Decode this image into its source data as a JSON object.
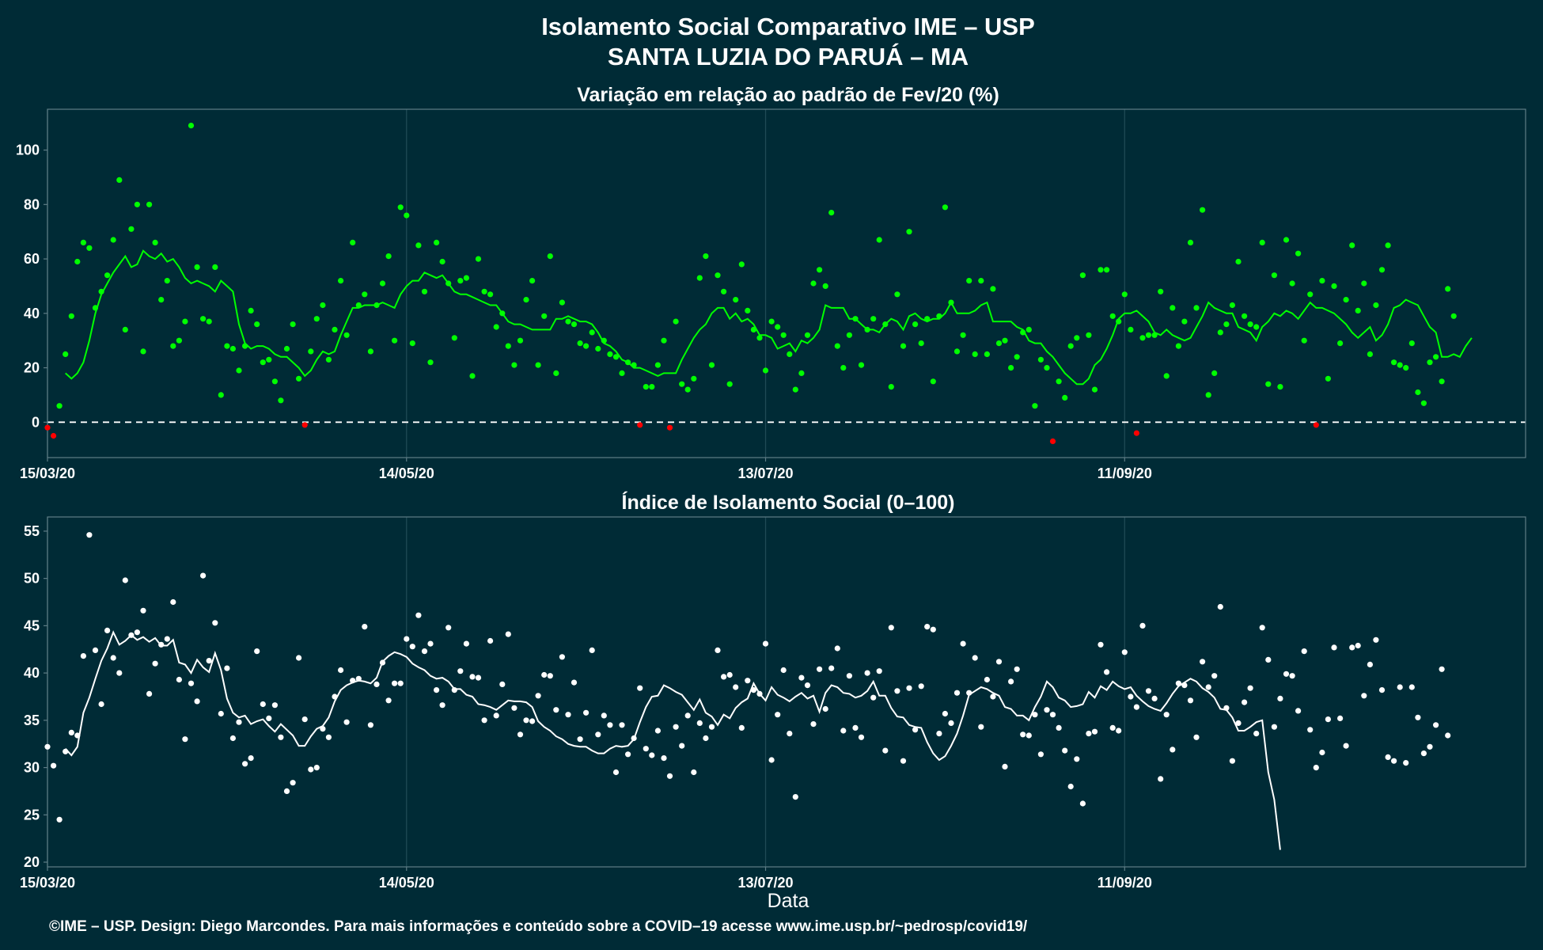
{
  "header": {
    "title_line1": "Isolamento Social Comparativo IME – USP",
    "title_line2": "SANTA LUZIA DO PARUÁ – MA"
  },
  "footer": {
    "xlabel": "Data",
    "caption": "©IME – USP. Design: Diego Marcondes. Para mais informações e conteúdo sobre a COVID–19 acesse www.ime.usp.br/~pedrosp/covid19/"
  },
  "colors": {
    "background": "#002b36",
    "positive_points": "#00ff00",
    "negative_points": "#ff0000",
    "moving_average_top": "#00ff00",
    "index_points": "#ffffff",
    "index_line": "#ffffff"
  },
  "chart_data": [
    {
      "type": "scatter",
      "title": "Variação em relação ao padrão de Fev/20 (%)",
      "x_start": "15/03/20",
      "x_end": "17/11/20",
      "x_tick_labels": [
        "15/03/20",
        "14/05/20",
        "13/07/20",
        "11/09/20"
      ],
      "y_ticks": [
        0,
        20,
        40,
        60,
        80,
        100
      ],
      "ylim": [
        -13,
        115
      ],
      "reference_line": 0,
      "grid": "vertical only",
      "point_color_rule": "green when >= 0, red when < 0",
      "series": [
        {
          "type": "scatter",
          "values": [
            -2,
            -5,
            6,
            25,
            39,
            59,
            66,
            64,
            42,
            48,
            54,
            67,
            89,
            34,
            71,
            80,
            26,
            80,
            66,
            45,
            52,
            28,
            30,
            37,
            109,
            57,
            38,
            37,
            57,
            10,
            28,
            27,
            19,
            28,
            41,
            36,
            22,
            23,
            15,
            8,
            27,
            36,
            16,
            -1,
            26,
            38,
            43,
            23,
            34,
            52,
            32,
            66,
            43,
            47,
            26,
            43,
            51,
            61,
            30,
            79,
            76,
            29,
            65,
            48,
            22,
            66,
            59,
            51,
            31,
            52,
            53,
            17,
            60,
            48,
            47,
            35,
            40,
            28,
            21,
            30,
            45,
            52,
            21,
            39,
            61,
            18,
            44,
            37,
            36,
            29,
            28,
            33,
            27,
            30,
            25,
            24,
            18,
            22,
            21,
            -1,
            13,
            13,
            21,
            30,
            -2,
            37,
            14,
            12,
            16,
            53,
            61,
            21,
            54,
            48,
            14,
            45,
            58,
            41,
            34,
            31,
            19,
            37,
            35,
            32,
            25,
            12,
            18,
            32,
            51,
            56,
            50,
            77,
            28,
            20,
            32,
            38,
            21,
            34,
            38,
            67,
            36,
            13,
            47,
            28,
            70,
            36,
            29,
            38,
            15,
            39,
            79,
            44,
            26,
            32,
            52,
            25,
            52,
            25,
            49,
            29,
            30,
            20,
            24,
            33,
            34,
            6,
            23,
            20,
            -7,
            15,
            9,
            28,
            31,
            54,
            32,
            12,
            56,
            56,
            39,
            37,
            47,
            34,
            -4,
            31,
            32,
            32,
            48,
            17,
            42,
            28,
            37,
            66,
            42,
            78,
            10,
            18,
            33,
            36,
            43,
            59,
            39,
            36,
            35,
            66,
            14,
            54,
            13,
            67,
            51,
            62,
            30,
            47,
            -1,
            52,
            16,
            50,
            29,
            45,
            65,
            41,
            51,
            25,
            43,
            56,
            65,
            22,
            21,
            20,
            29,
            11,
            7,
            22,
            24,
            15,
            49,
            39
          ],
          "negative_color": "#ff0000",
          "positive_color": "#00ff00"
        },
        {
          "type": "line",
          "values": [
            18,
            16,
            18,
            22,
            30,
            40,
            47,
            51,
            55,
            58,
            61,
            57,
            58,
            63,
            61,
            60,
            62,
            59,
            60,
            57,
            53,
            51,
            52,
            51,
            50,
            48,
            52,
            50,
            48,
            36,
            29,
            27,
            28,
            28,
            27,
            25,
            24,
            24,
            22,
            20,
            17,
            19,
            23,
            26,
            25,
            26,
            32,
            37,
            42,
            42,
            43,
            43,
            43,
            44,
            43,
            42,
            47,
            50,
            52,
            52,
            55,
            54,
            53,
            54,
            51,
            48,
            47,
            47,
            46,
            45,
            44,
            43,
            43,
            40,
            37,
            36,
            36,
            35,
            34,
            34,
            34,
            34,
            38,
            38,
            39,
            38,
            37,
            37,
            36,
            33,
            29,
            28,
            26,
            23,
            22,
            20,
            20,
            19,
            18,
            17,
            18,
            18,
            18,
            23,
            27,
            31,
            34,
            36,
            40,
            42,
            42,
            38,
            40,
            37,
            38,
            36,
            32,
            32,
            31,
            27,
            28,
            29,
            26,
            30,
            29,
            31,
            34,
            43,
            42,
            42,
            42,
            38,
            38,
            36,
            34,
            34,
            33,
            36,
            38,
            37,
            34,
            39,
            40,
            38,
            37,
            38,
            38,
            40,
            44,
            40,
            40,
            40,
            41,
            43,
            44,
            37,
            37,
            37,
            37,
            35,
            34,
            30,
            29,
            29,
            26,
            24,
            21,
            18,
            16,
            14,
            14,
            16,
            21,
            23,
            27,
            32,
            38,
            40,
            40,
            41,
            39,
            37,
            33,
            32,
            34,
            32,
            31,
            30,
            31,
            35,
            39,
            44,
            42,
            41,
            40,
            40,
            35,
            34,
            33,
            30,
            35,
            37,
            40,
            39,
            41,
            40,
            38,
            41,
            44,
            42,
            42,
            41,
            40,
            38,
            36,
            33,
            31,
            33,
            35,
            30,
            32,
            36,
            42,
            43,
            45,
            44,
            43,
            39,
            35,
            33,
            24,
            24,
            25,
            24,
            28,
            31
          ]
        }
      ]
    },
    {
      "type": "scatter",
      "title": "Índice de Isolamento Social (0–100)",
      "x_start": "15/03/20",
      "x_end": "17/11/20",
      "x_tick_labels": [
        "15/03/20",
        "14/05/20",
        "13/07/20",
        "11/09/20"
      ],
      "y_ticks": [
        20,
        25,
        30,
        35,
        40,
        45,
        50,
        55
      ],
      "ylim": [
        19.5,
        56.5
      ],
      "grid": "vertical only",
      "xlabel": "Data",
      "series": [
        {
          "type": "scatter",
          "values": [
            32.2,
            30.2,
            24.5,
            31.7,
            33.7,
            33.4,
            41.8,
            54.6,
            42.4,
            36.7,
            44.5,
            41.6,
            40.0,
            49.8,
            44.0,
            44.3,
            46.6,
            37.8,
            41.0,
            43.0,
            43.6,
            47.5,
            39.3,
            33.0,
            38.9,
            37.0,
            50.3,
            41.3,
            45.3,
            35.7,
            40.5,
            33.1,
            34.8,
            30.4,
            31.0,
            42.3,
            36.7,
            35.2,
            36.6,
            33.2,
            27.5,
            28.4,
            41.6,
            35.1,
            29.8,
            30.0,
            34.1,
            33.2,
            37.5,
            40.3,
            34.8,
            39.2,
            39.4,
            44.9,
            34.5,
            38.8,
            41.1,
            37.1,
            38.9,
            38.9,
            43.6,
            42.8,
            46.1,
            42.3,
            43.1,
            38.2,
            36.6,
            44.8,
            38.2,
            40.2,
            43.1,
            39.6,
            39.5,
            35.0,
            43.4,
            35.5,
            38.8,
            44.1,
            36.3,
            33.5,
            35.0,
            34.9,
            37.6,
            39.8,
            39.7,
            36.1,
            41.7,
            35.6,
            39.0,
            33.0,
            35.8,
            42.4,
            33.5,
            35.5,
            34.5,
            29.5,
            34.5,
            31.4,
            33.1,
            38.4,
            32.0,
            31.3,
            33.9,
            31.0,
            29.1,
            34.3,
            32.3,
            35.5,
            29.5,
            34.7,
            33.1,
            34.3,
            42.4,
            39.6,
            39.8,
            38.5,
            34.2,
            39.2,
            38.2,
            37.8,
            43.1,
            30.8,
            35.6,
            40.3,
            33.6,
            26.9,
            39.5,
            38.7,
            34.6,
            40.4,
            36.2,
            40.5,
            42.6,
            33.9,
            39.7,
            34.2,
            33.2,
            40.0,
            37.4,
            40.2,
            31.8,
            44.8,
            38.1,
            30.7,
            38.4,
            34.0,
            38.6,
            44.9,
            44.6,
            33.6,
            35.7,
            34.7,
            37.9,
            43.1,
            37.9,
            41.6,
            34.3,
            39.3,
            37.5,
            41.2,
            30.1,
            39.1,
            40.4,
            33.5,
            33.4,
            35.6,
            31.4,
            36.1,
            35.6,
            34.2,
            31.8,
            28.0,
            30.9,
            26.2,
            33.6,
            33.8,
            43.0,
            40.1,
            34.2,
            33.9,
            42.2,
            37.5,
            36.4,
            45.0,
            38.1,
            37.3,
            28.8,
            35.6,
            31.9,
            38.9,
            38.7,
            37.1,
            33.2,
            41.2,
            38.5,
            39.7,
            47.0,
            36.3,
            30.7,
            34.7,
            36.9,
            38.4,
            33.6,
            44.8,
            41.4,
            34.3,
            37.3,
            39.9,
            39.7,
            36.0,
            42.3,
            34.0,
            30.0,
            31.6,
            35.1,
            42.7,
            35.2,
            32.3,
            42.7,
            42.9,
            37.6,
            40.9,
            43.5,
            38.2,
            31.1,
            30.7,
            38.5,
            30.5,
            38.5,
            35.3,
            31.5,
            32.2,
            34.5,
            40.4,
            33.4
          ]
        },
        {
          "type": "line",
          "values": [
            32.0,
            31.3,
            32.2,
            35.8,
            37.4,
            39.4,
            41.3,
            42.6,
            44.3,
            43.0,
            43.4,
            44.0,
            43.5,
            43.8,
            43.3,
            43.7,
            42.9,
            42.9,
            43.5,
            41.1,
            40.9,
            40.0,
            41.4,
            40.6,
            40.1,
            42.1,
            40.3,
            37.3,
            35.8,
            35.3,
            35.5,
            34.6,
            34.9,
            35.1,
            34.4,
            33.8,
            34.6,
            34.0,
            33.4,
            32.3,
            32.3,
            33.3,
            34.1,
            34.4,
            35.3,
            37.0,
            38.2,
            38.7,
            39.0,
            39.2,
            39.1,
            38.9,
            39.5,
            41.2,
            41.8,
            42.2,
            42.0,
            41.7,
            41.0,
            40.6,
            40.3,
            39.7,
            39.4,
            39.5,
            39.1,
            38.3,
            38.3,
            37.7,
            37.5,
            36.7,
            36.6,
            36.4,
            36.1,
            36.6,
            37.1,
            37.0,
            37.0,
            36.9,
            36.4,
            34.9,
            34.3,
            33.9,
            33.3,
            33.0,
            32.5,
            32.3,
            32.2,
            32.2,
            31.8,
            31.5,
            31.5,
            32.0,
            32.3,
            32.2,
            32.3,
            33.0,
            34.8,
            36.4,
            37.5,
            37.6,
            38.7,
            38.4,
            38.0,
            37.7,
            36.9,
            36.1,
            37.2,
            35.8,
            35.4,
            34.5,
            35.6,
            35.2,
            36.3,
            36.9,
            37.3,
            38.9,
            37.8,
            37.1,
            38.5,
            37.7,
            37.4,
            37.0,
            37.5,
            37.9,
            37.3,
            37.6,
            35.9,
            37.9,
            38.7,
            38.5,
            37.9,
            37.8,
            37.4,
            37.6,
            38.1,
            39.1,
            37.6,
            37.6,
            36.3,
            35.4,
            35.3,
            34.5,
            34.3,
            34.2,
            32.7,
            31.5,
            30.8,
            31.2,
            32.3,
            33.6,
            35.5,
            37.7,
            38.1,
            38.5,
            38.3,
            37.9,
            37.6,
            36.4,
            36.2,
            35.5,
            35.5,
            35.0,
            36.4,
            37.5,
            39.1,
            38.5,
            37.4,
            37.1,
            36.4,
            36.5,
            36.7,
            38.0,
            37.4,
            38.6,
            38.2,
            39.1,
            38.6,
            38.3,
            38.5,
            37.6,
            37.0,
            36.5,
            36.2,
            36.0,
            36.8,
            37.8,
            38.6,
            39.0,
            39.4,
            39.1,
            38.4,
            38.0,
            37.4,
            36.2,
            36.1,
            35.3,
            33.9,
            33.9,
            34.3,
            34.8,
            35.0,
            29.5,
            26.6,
            21.3
          ]
        }
      ]
    }
  ]
}
